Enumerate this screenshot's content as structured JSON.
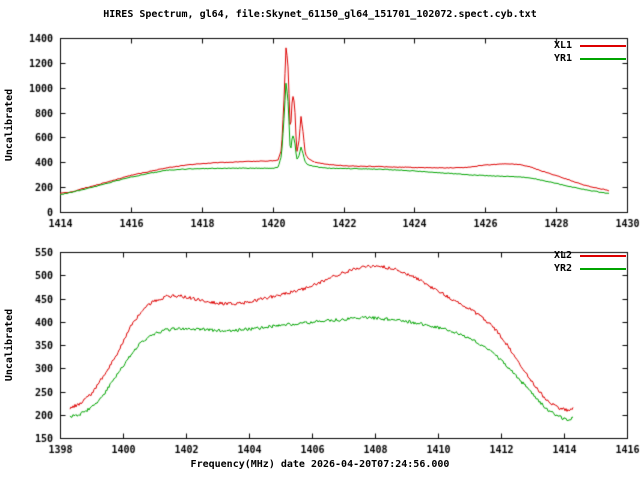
{
  "title": "HIRES Spectrum, gl64, file:Skynet_61150_gl64_151701_102072.spect.cyb.txt",
  "xlabel": "Frequency(MHz) date 2026-04-20T07:24:56.000",
  "colors": {
    "series_red": "#dd0000",
    "series_green": "#00a400",
    "axis": "#000000",
    "background": "#ffffff"
  },
  "chart_data": [
    {
      "type": "line",
      "ylabel": "Uncalibrated",
      "xlim": [
        1414,
        1430
      ],
      "xstep": 2,
      "ylim": [
        0,
        1400
      ],
      "ystep": 200,
      "grid": false,
      "legend_position": "top-right",
      "noise_amp": 3,
      "series": [
        {
          "name": "XL1",
          "color": "#dd0000",
          "points": [
            [
              1414.0,
              150
            ],
            [
              1414.3,
              160
            ],
            [
              1414.6,
              185
            ],
            [
              1415.0,
              215
            ],
            [
              1415.5,
              255
            ],
            [
              1416.0,
              295
            ],
            [
              1416.5,
              325
            ],
            [
              1417.0,
              355
            ],
            [
              1417.5,
              375
            ],
            [
              1418.0,
              390
            ],
            [
              1418.5,
              398
            ],
            [
              1419.0,
              403
            ],
            [
              1419.5,
              408
            ],
            [
              1420.0,
              412
            ],
            [
              1420.15,
              418
            ],
            [
              1420.25,
              500
            ],
            [
              1420.32,
              900
            ],
            [
              1420.38,
              1340
            ],
            [
              1420.44,
              1150
            ],
            [
              1420.5,
              620
            ],
            [
              1420.56,
              950
            ],
            [
              1420.62,
              870
            ],
            [
              1420.68,
              480
            ],
            [
              1420.74,
              560
            ],
            [
              1420.8,
              770
            ],
            [
              1420.86,
              640
            ],
            [
              1420.92,
              470
            ],
            [
              1421.0,
              430
            ],
            [
              1421.2,
              400
            ],
            [
              1421.5,
              385
            ],
            [
              1422.0,
              372
            ],
            [
              1422.5,
              368
            ],
            [
              1423.0,
              365
            ],
            [
              1423.5,
              362
            ],
            [
              1424.0,
              358
            ],
            [
              1424.5,
              355
            ],
            [
              1425.0,
              355
            ],
            [
              1425.5,
              360
            ],
            [
              1426.0,
              378
            ],
            [
              1426.5,
              388
            ],
            [
              1427.0,
              382
            ],
            [
              1427.3,
              360
            ],
            [
              1427.6,
              330
            ],
            [
              1428.0,
              292
            ],
            [
              1428.4,
              255
            ],
            [
              1428.8,
              215
            ],
            [
              1429.2,
              190
            ],
            [
              1429.5,
              172
            ]
          ]
        },
        {
          "name": "YR1",
          "color": "#00a400",
          "points": [
            [
              1414.0,
              140
            ],
            [
              1414.5,
              170
            ],
            [
              1415.0,
              205
            ],
            [
              1415.5,
              245
            ],
            [
              1416.0,
              280
            ],
            [
              1416.5,
              310
            ],
            [
              1417.0,
              335
            ],
            [
              1417.5,
              345
            ],
            [
              1418.0,
              350
            ],
            [
              1419.0,
              352
            ],
            [
              1420.0,
              352
            ],
            [
              1420.15,
              358
            ],
            [
              1420.25,
              450
            ],
            [
              1420.32,
              750
            ],
            [
              1420.38,
              1050
            ],
            [
              1420.44,
              870
            ],
            [
              1420.5,
              470
            ],
            [
              1420.56,
              620
            ],
            [
              1420.62,
              580
            ],
            [
              1420.68,
              420
            ],
            [
              1420.74,
              450
            ],
            [
              1420.8,
              520
            ],
            [
              1420.86,
              470
            ],
            [
              1420.92,
              400
            ],
            [
              1421.0,
              378
            ],
            [
              1421.3,
              360
            ],
            [
              1421.6,
              352
            ],
            [
              1422.0,
              350
            ],
            [
              1423.0,
              345
            ],
            [
              1423.5,
              338
            ],
            [
              1424.0,
              330
            ],
            [
              1424.5,
              320
            ],
            [
              1425.0,
              310
            ],
            [
              1425.5,
              300
            ],
            [
              1426.0,
              292
            ],
            [
              1426.5,
              288
            ],
            [
              1427.0,
              282
            ],
            [
              1427.3,
              272
            ],
            [
              1427.6,
              255
            ],
            [
              1428.0,
              230
            ],
            [
              1428.4,
              205
            ],
            [
              1428.8,
              180
            ],
            [
              1429.2,
              162
            ],
            [
              1429.5,
              148
            ]
          ]
        }
      ]
    },
    {
      "type": "line",
      "ylabel": "Uncalibrated",
      "xlim": [
        1398,
        1416
      ],
      "xstep": 2,
      "ylim": [
        150,
        550
      ],
      "ystep": 50,
      "grid": false,
      "legend_position": "top-right",
      "noise_amp": 3.5,
      "series": [
        {
          "name": "XL2",
          "color": "#dd0000",
          "points": [
            [
              1398.3,
              215
            ],
            [
              1398.6,
              222
            ],
            [
              1399.0,
              245
            ],
            [
              1399.4,
              285
            ],
            [
              1399.8,
              330
            ],
            [
              1400.2,
              385
            ],
            [
              1400.6,
              425
            ],
            [
              1401.0,
              445
            ],
            [
              1401.4,
              455
            ],
            [
              1401.8,
              456
            ],
            [
              1402.2,
              450
            ],
            [
              1402.6,
              444
            ],
            [
              1403.0,
              440
            ],
            [
              1403.4,
              438
            ],
            [
              1403.8,
              440
            ],
            [
              1404.2,
              446
            ],
            [
              1404.6,
              452
            ],
            [
              1405.0,
              458
            ],
            [
              1405.4,
              465
            ],
            [
              1405.8,
              472
            ],
            [
              1406.2,
              482
            ],
            [
              1406.6,
              494
            ],
            [
              1407.0,
              506
            ],
            [
              1407.4,
              514
            ],
            [
              1407.8,
              520
            ],
            [
              1408.2,
              519
            ],
            [
              1408.6,
              513
            ],
            [
              1409.0,
              503
            ],
            [
              1409.4,
              490
            ],
            [
              1409.8,
              474
            ],
            [
              1410.2,
              458
            ],
            [
              1410.6,
              442
            ],
            [
              1411.0,
              428
            ],
            [
              1411.4,
              410
            ],
            [
              1411.8,
              385
            ],
            [
              1412.2,
              350
            ],
            [
              1412.6,
              308
            ],
            [
              1413.0,
              268
            ],
            [
              1413.4,
              235
            ],
            [
              1413.8,
              215
            ],
            [
              1414.1,
              210
            ],
            [
              1414.3,
              213
            ]
          ]
        },
        {
          "name": "YR2",
          "color": "#00a400",
          "points": [
            [
              1398.3,
              196
            ],
            [
              1398.6,
              200
            ],
            [
              1399.0,
              215
            ],
            [
              1399.4,
              245
            ],
            [
              1399.8,
              285
            ],
            [
              1400.2,
              325
            ],
            [
              1400.6,
              358
            ],
            [
              1401.0,
              375
            ],
            [
              1401.4,
              383
            ],
            [
              1401.8,
              386
            ],
            [
              1402.2,
              385
            ],
            [
              1402.6,
              383
            ],
            [
              1403.0,
              381
            ],
            [
              1403.5,
              381
            ],
            [
              1404.0,
              384
            ],
            [
              1404.5,
              388
            ],
            [
              1405.0,
              392
            ],
            [
              1405.5,
              396
            ],
            [
              1406.0,
              399
            ],
            [
              1406.5,
              402
            ],
            [
              1407.0,
              405
            ],
            [
              1407.5,
              408
            ],
            [
              1408.0,
              408
            ],
            [
              1408.5,
              405
            ],
            [
              1409.0,
              401
            ],
            [
              1409.5,
              395
            ],
            [
              1410.0,
              388
            ],
            [
              1410.5,
              378
            ],
            [
              1411.0,
              365
            ],
            [
              1411.5,
              345
            ],
            [
              1412.0,
              318
            ],
            [
              1412.5,
              282
            ],
            [
              1413.0,
              245
            ],
            [
              1413.4,
              215
            ],
            [
              1413.8,
              196
            ],
            [
              1414.1,
              190
            ],
            [
              1414.3,
              194
            ]
          ]
        }
      ]
    }
  ]
}
